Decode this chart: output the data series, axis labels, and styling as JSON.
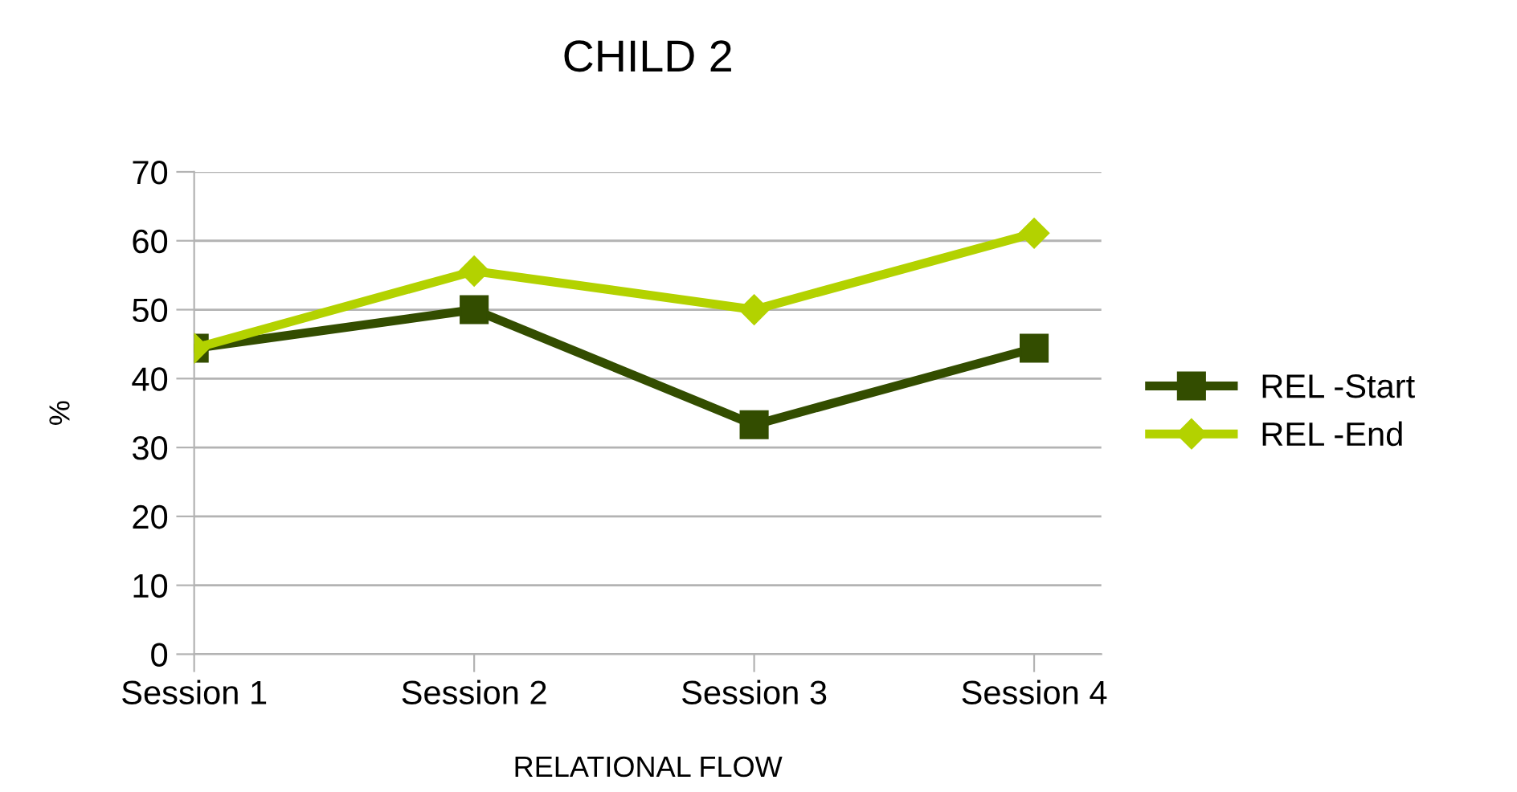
{
  "chart_data": {
    "type": "line",
    "title": "CHILD 2",
    "xlabel": "RELATIONAL FLOW",
    "ylabel": "%",
    "categories": [
      "Session 1",
      "Session 2",
      "Session 3",
      "Session 4"
    ],
    "series": [
      {
        "name": "REL -Start",
        "color": "#334d00",
        "marker": "square",
        "values": [
          44.4,
          50,
          33.3,
          44.4
        ]
      },
      {
        "name": "REL -End",
        "color": "#b3d200",
        "marker": "diamond",
        "values": [
          44.4,
          55.6,
          50,
          61.1
        ]
      }
    ],
    "ylim": [
      0,
      70
    ],
    "yticks": [
      0,
      10,
      20,
      30,
      40,
      50,
      60,
      70
    ],
    "grid": "y",
    "legend": "right",
    "line_style": "solid"
  }
}
